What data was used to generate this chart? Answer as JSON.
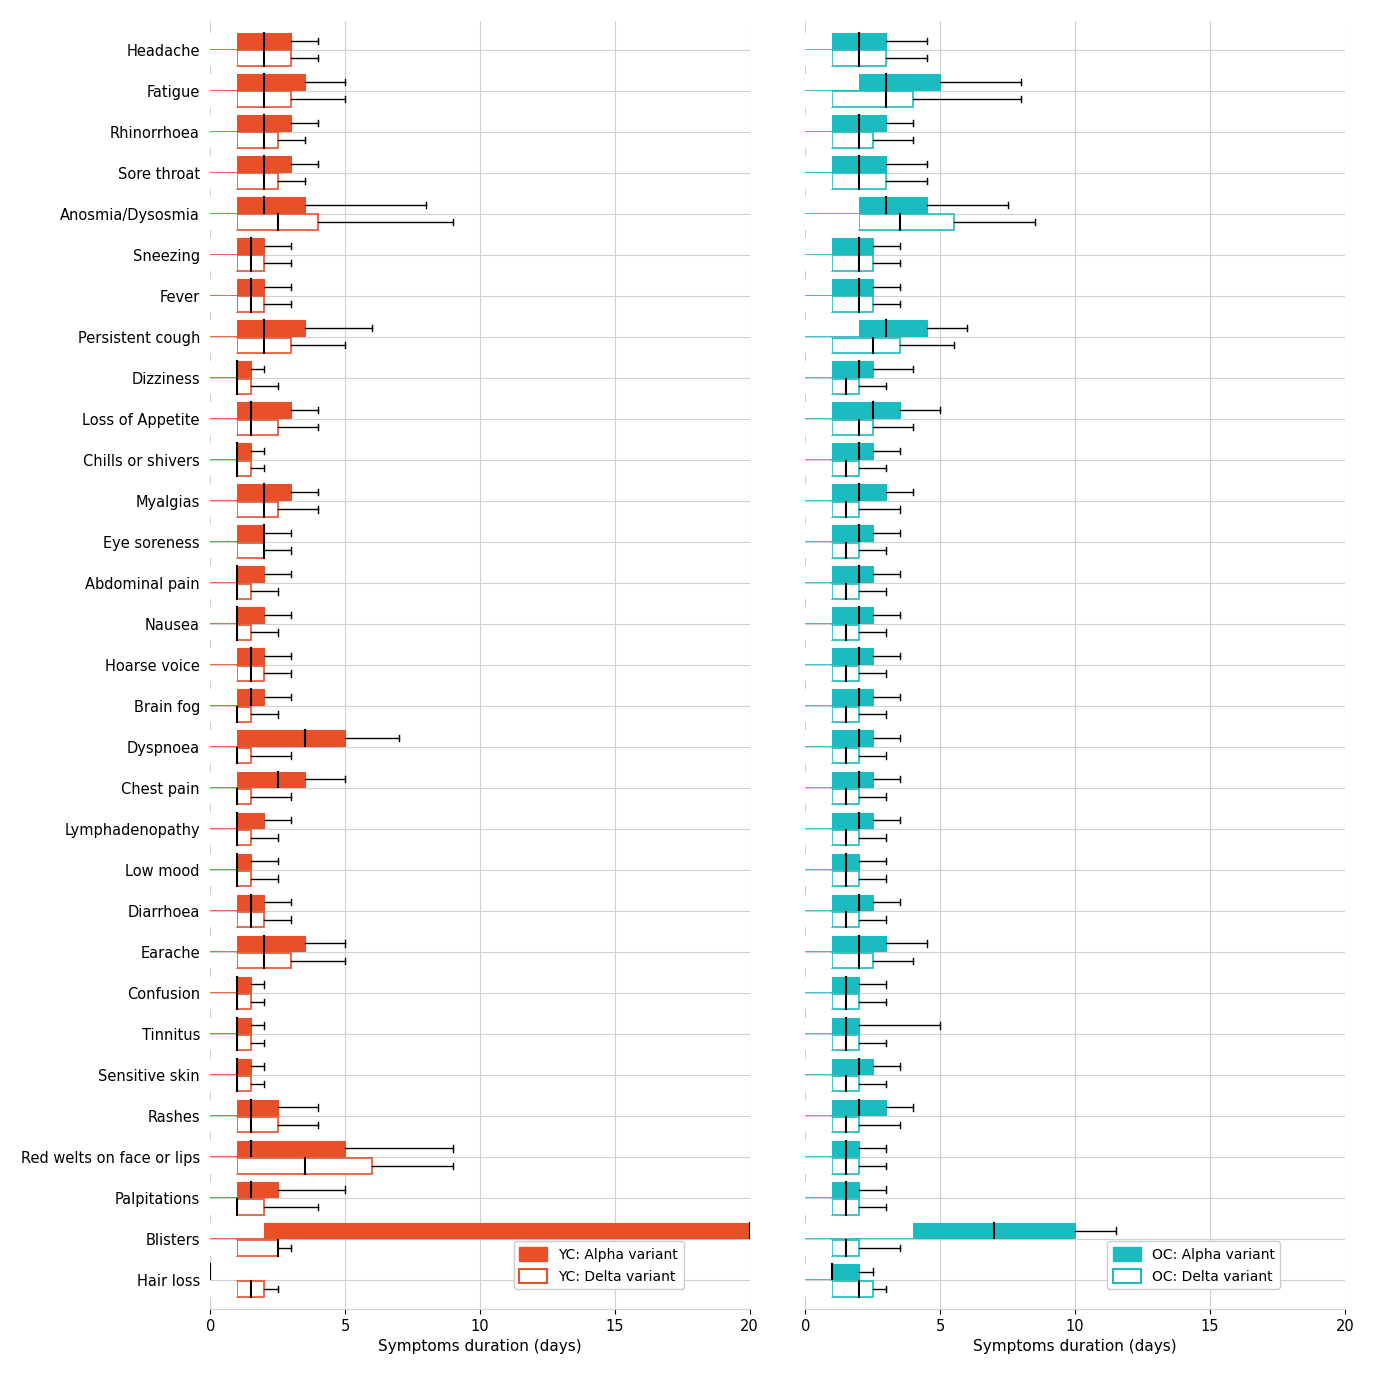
{
  "symptoms": [
    "Headache",
    "Fatigue",
    "Rhinorrhoea",
    "Sore throat",
    "Anosmia/Dysosmia",
    "Sneezing",
    "Fever",
    "Persistent cough",
    "Dizziness",
    "Loss of Appetite",
    "Chills or shivers",
    "Myalgias",
    "Eye soreness",
    "Abdominal pain",
    "Nausea",
    "Hoarse voice",
    "Brain fog",
    "Dyspnoea",
    "Chest pain",
    "Lymphadenopathy",
    "Low mood",
    "Diarrhoea",
    "Earache",
    "Confusion",
    "Tinnitus",
    "Sensitive skin",
    "Rashes",
    "Red welts on face or lips",
    "Palpitations",
    "Blisters",
    "Hair loss"
  ],
  "yc_alpha": {
    "median": [
      2.0,
      2.0,
      2.0,
      2.0,
      2.0,
      1.5,
      1.5,
      2.0,
      1.0,
      1.5,
      1.0,
      2.0,
      2.0,
      1.0,
      1.0,
      1.5,
      1.5,
      3.5,
      2.5,
      1.0,
      1.0,
      1.5,
      2.0,
      1.0,
      1.0,
      1.0,
      1.5,
      1.5,
      1.5,
      20.0,
      0.0
    ],
    "q1": [
      1.0,
      1.0,
      1.0,
      1.0,
      1.0,
      1.0,
      1.0,
      1.0,
      1.0,
      1.0,
      1.0,
      1.0,
      1.0,
      1.0,
      1.0,
      1.0,
      1.0,
      1.0,
      1.0,
      1.0,
      1.0,
      1.0,
      1.0,
      1.0,
      1.0,
      1.0,
      1.0,
      1.0,
      1.0,
      2.0,
      0.0
    ],
    "q3": [
      3.0,
      3.5,
      3.0,
      3.0,
      3.5,
      2.0,
      2.0,
      3.5,
      1.5,
      3.0,
      1.5,
      3.0,
      2.0,
      2.0,
      2.0,
      2.0,
      2.0,
      5.0,
      3.5,
      2.0,
      1.5,
      2.0,
      3.5,
      1.5,
      1.5,
      1.5,
      2.5,
      5.0,
      2.5,
      20.0,
      0.0
    ],
    "whisker_high": [
      4.0,
      5.0,
      4.0,
      4.0,
      8.0,
      3.0,
      3.0,
      6.0,
      2.0,
      4.0,
      2.0,
      4.0,
      3.0,
      3.0,
      3.0,
      3.0,
      3.0,
      7.0,
      5.0,
      3.0,
      2.5,
      3.0,
      5.0,
      2.0,
      2.0,
      2.0,
      4.0,
      9.0,
      5.0,
      20.0,
      0.0
    ]
  },
  "yc_delta": {
    "median": [
      2.0,
      2.0,
      2.0,
      2.0,
      2.5,
      1.5,
      1.5,
      2.0,
      1.0,
      1.5,
      1.0,
      2.0,
      2.0,
      1.0,
      1.0,
      1.5,
      1.0,
      1.0,
      1.0,
      1.0,
      1.0,
      1.5,
      2.0,
      1.0,
      1.0,
      1.0,
      1.5,
      3.5,
      1.0,
      2.5,
      1.5
    ],
    "q1": [
      1.0,
      1.0,
      1.0,
      1.0,
      1.0,
      1.0,
      1.0,
      1.0,
      1.0,
      1.0,
      1.0,
      1.0,
      1.0,
      1.0,
      1.0,
      1.0,
      1.0,
      1.0,
      1.0,
      1.0,
      1.0,
      1.0,
      1.0,
      1.0,
      1.0,
      1.0,
      1.0,
      1.0,
      1.0,
      1.0,
      1.0
    ],
    "q3": [
      3.0,
      3.0,
      2.5,
      2.5,
      4.0,
      2.0,
      2.0,
      3.0,
      1.5,
      2.5,
      1.5,
      2.5,
      2.0,
      1.5,
      1.5,
      2.0,
      1.5,
      1.5,
      1.5,
      1.5,
      1.5,
      2.0,
      3.0,
      1.5,
      1.5,
      1.5,
      2.5,
      6.0,
      2.0,
      2.5,
      2.0
    ],
    "whisker_high": [
      4.0,
      5.0,
      3.5,
      3.5,
      9.0,
      3.0,
      3.0,
      5.0,
      2.5,
      4.0,
      2.0,
      4.0,
      3.0,
      2.5,
      2.5,
      3.0,
      2.5,
      3.0,
      3.0,
      2.5,
      2.5,
      3.0,
      5.0,
      2.0,
      2.0,
      2.0,
      4.0,
      9.0,
      4.0,
      3.0,
      2.5
    ]
  },
  "oc_alpha": {
    "median": [
      2.0,
      3.0,
      2.0,
      2.0,
      3.0,
      2.0,
      2.0,
      3.0,
      2.0,
      2.5,
      2.0,
      2.0,
      2.0,
      2.0,
      2.0,
      2.0,
      2.0,
      2.0,
      2.0,
      2.0,
      1.5,
      2.0,
      2.0,
      1.5,
      1.5,
      2.0,
      2.0,
      1.5,
      1.5,
      7.0,
      1.0
    ],
    "q1": [
      1.0,
      2.0,
      1.0,
      1.0,
      2.0,
      1.0,
      1.0,
      2.0,
      1.0,
      1.0,
      1.0,
      1.0,
      1.0,
      1.0,
      1.0,
      1.0,
      1.0,
      1.0,
      1.0,
      1.0,
      1.0,
      1.0,
      1.0,
      1.0,
      1.0,
      1.0,
      1.0,
      1.0,
      1.0,
      4.0,
      1.0
    ],
    "q3": [
      3.0,
      5.0,
      3.0,
      3.0,
      4.5,
      2.5,
      2.5,
      4.5,
      2.5,
      3.5,
      2.5,
      3.0,
      2.5,
      2.5,
      2.5,
      2.5,
      2.5,
      2.5,
      2.5,
      2.5,
      2.0,
      2.5,
      3.0,
      2.0,
      2.0,
      2.5,
      3.0,
      2.0,
      2.0,
      10.0,
      2.0
    ],
    "whisker_high": [
      4.5,
      8.0,
      4.0,
      4.5,
      7.5,
      3.5,
      3.5,
      6.0,
      4.0,
      5.0,
      3.5,
      4.0,
      3.5,
      3.5,
      3.5,
      3.5,
      3.5,
      3.5,
      3.5,
      3.5,
      3.0,
      3.5,
      4.5,
      3.0,
      5.0,
      3.5,
      4.0,
      3.0,
      3.0,
      11.5,
      2.5
    ]
  },
  "oc_delta": {
    "median": [
      2.0,
      3.0,
      2.0,
      2.0,
      3.5,
      2.0,
      2.0,
      2.5,
      1.5,
      2.0,
      1.5,
      1.5,
      1.5,
      1.5,
      1.5,
      1.5,
      1.5,
      1.5,
      1.5,
      1.5,
      1.5,
      1.5,
      2.0,
      1.5,
      1.5,
      1.5,
      1.5,
      1.5,
      1.5,
      1.5,
      2.0
    ],
    "q1": [
      1.0,
      1.0,
      1.0,
      1.0,
      2.0,
      1.0,
      1.0,
      1.0,
      1.0,
      1.0,
      1.0,
      1.0,
      1.0,
      1.0,
      1.0,
      1.0,
      1.0,
      1.0,
      1.0,
      1.0,
      1.0,
      1.0,
      1.0,
      1.0,
      1.0,
      1.0,
      1.0,
      1.0,
      1.0,
      1.0,
      1.0
    ],
    "q3": [
      3.0,
      4.0,
      2.5,
      3.0,
      5.5,
      2.5,
      2.5,
      3.5,
      2.0,
      2.5,
      2.0,
      2.0,
      2.0,
      2.0,
      2.0,
      2.0,
      2.0,
      2.0,
      2.0,
      2.0,
      2.0,
      2.0,
      2.5,
      2.0,
      2.0,
      2.0,
      2.0,
      2.0,
      2.0,
      2.0,
      2.5
    ],
    "whisker_high": [
      4.5,
      8.0,
      4.0,
      4.5,
      8.5,
      3.5,
      3.5,
      5.5,
      3.0,
      4.0,
      3.0,
      3.5,
      3.0,
      3.0,
      3.0,
      3.0,
      3.0,
      3.0,
      3.0,
      3.0,
      3.0,
      3.0,
      4.0,
      3.0,
      3.0,
      3.0,
      3.5,
      3.0,
      3.0,
      3.5,
      3.0
    ]
  },
  "color_yc_alpha": "#E8502A",
  "color_oc_alpha": "#1BBCBF",
  "xlim": [
    0,
    20
  ],
  "xticks": [
    0,
    5,
    10,
    15,
    20
  ],
  "xlabel": "Symptoms duration (days)"
}
